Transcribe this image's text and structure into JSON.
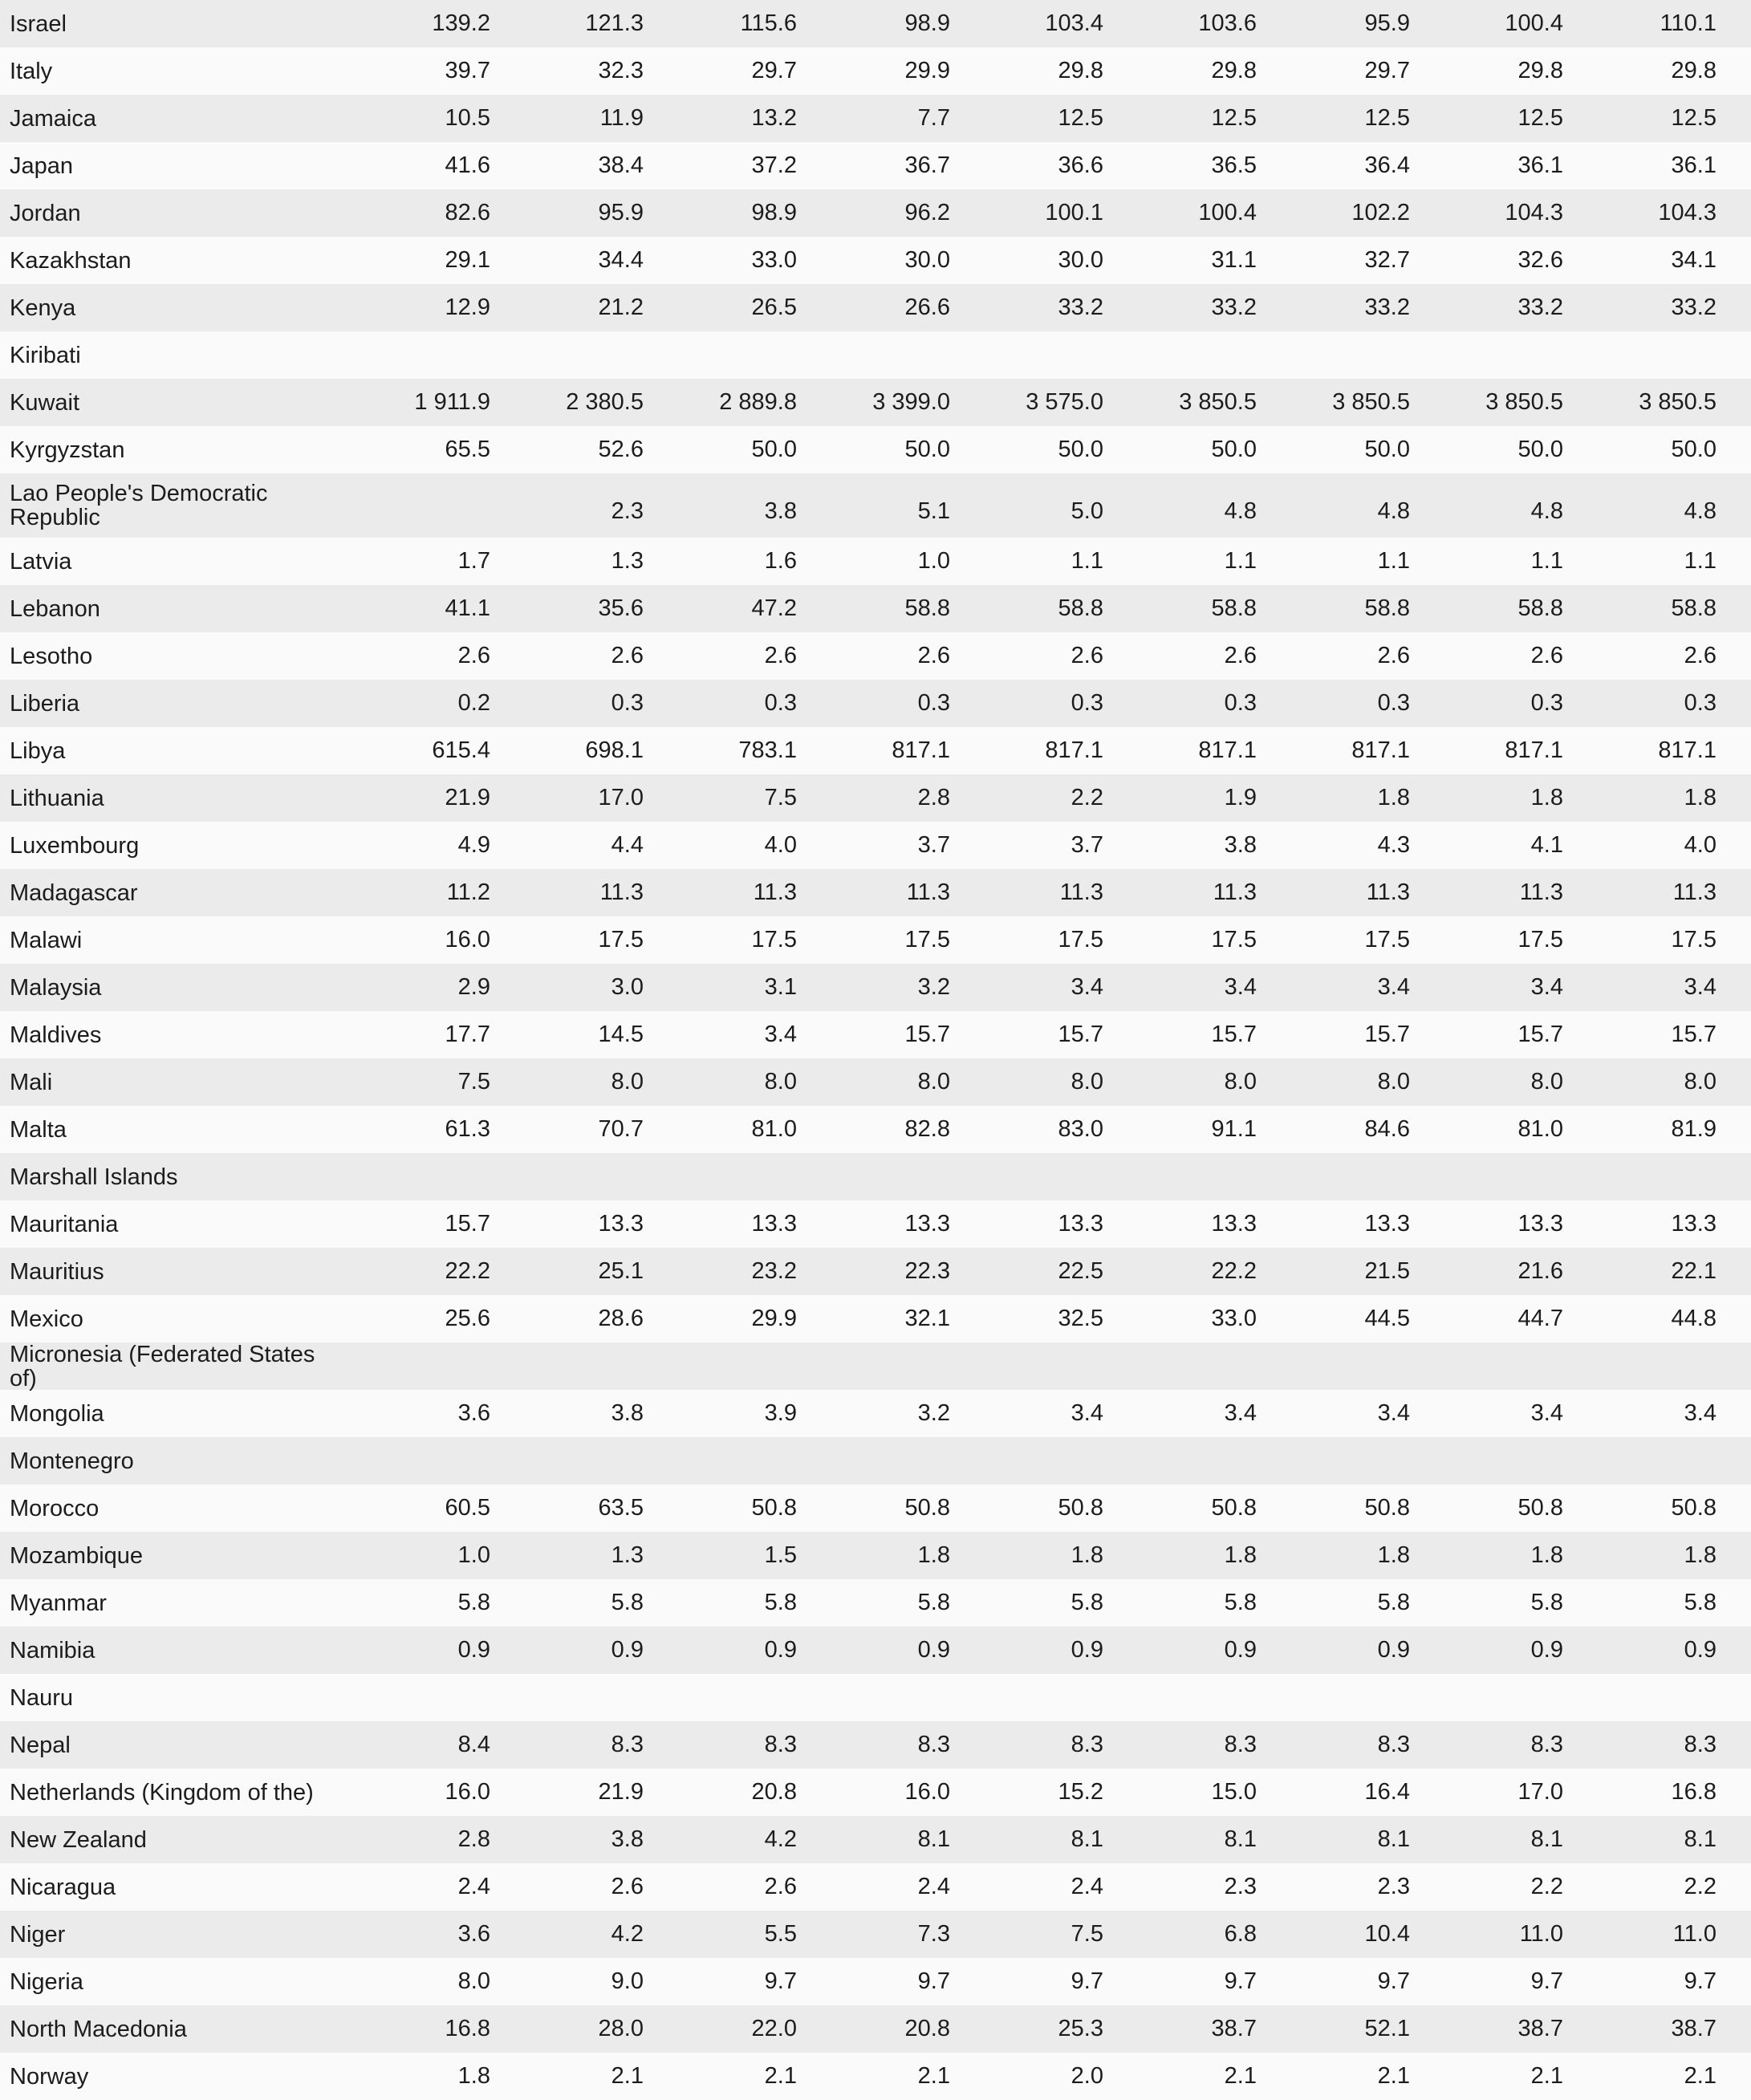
{
  "table": {
    "rows": [
      {
        "name": "Israel",
        "values": [
          "139.2",
          "121.3",
          "115.6",
          "98.9",
          "103.4",
          "103.6",
          "95.9",
          "100.4",
          "110.1"
        ]
      },
      {
        "name": "Italy",
        "values": [
          "39.7",
          "32.3",
          "29.7",
          "29.9",
          "29.8",
          "29.8",
          "29.7",
          "29.8",
          "29.8"
        ]
      },
      {
        "name": "Jamaica",
        "values": [
          "10.5",
          "11.9",
          "13.2",
          "7.7",
          "12.5",
          "12.5",
          "12.5",
          "12.5",
          "12.5"
        ]
      },
      {
        "name": "Japan",
        "values": [
          "41.6",
          "38.4",
          "37.2",
          "36.7",
          "36.6",
          "36.5",
          "36.4",
          "36.1",
          "36.1"
        ]
      },
      {
        "name": "Jordan",
        "values": [
          "82.6",
          "95.9",
          "98.9",
          "96.2",
          "100.1",
          "100.4",
          "102.2",
          "104.3",
          "104.3"
        ]
      },
      {
        "name": "Kazakhstan",
        "values": [
          "29.1",
          "34.4",
          "33.0",
          "30.0",
          "30.0",
          "31.1",
          "32.7",
          "32.6",
          "34.1"
        ]
      },
      {
        "name": "Kenya",
        "values": [
          "12.9",
          "21.2",
          "26.5",
          "26.6",
          "33.2",
          "33.2",
          "33.2",
          "33.2",
          "33.2"
        ]
      },
      {
        "name": "Kiribati",
        "values": []
      },
      {
        "name": "Kuwait",
        "values": [
          "1 911.9",
          "2 380.5",
          "2 889.8",
          "3 399.0",
          "3 575.0",
          "3 850.5",
          "3 850.5",
          "3 850.5",
          "3 850.5"
        ]
      },
      {
        "name": "Kyrgyzstan",
        "values": [
          "65.5",
          "52.6",
          "50.0",
          "50.0",
          "50.0",
          "50.0",
          "50.0",
          "50.0",
          "50.0"
        ]
      },
      {
        "name": "Lao People's Democratic Republic",
        "values": [
          "",
          "2.3",
          "3.8",
          "5.1",
          "5.0",
          "4.8",
          "4.8",
          "4.8",
          "4.8"
        ]
      },
      {
        "name": "Latvia",
        "values": [
          "1.7",
          "1.3",
          "1.6",
          "1.0",
          "1.1",
          "1.1",
          "1.1",
          "1.1",
          "1.1"
        ]
      },
      {
        "name": "Lebanon",
        "values": [
          "41.1",
          "35.6",
          "47.2",
          "58.8",
          "58.8",
          "58.8",
          "58.8",
          "58.8",
          "58.8"
        ]
      },
      {
        "name": "Lesotho",
        "values": [
          "2.6",
          "2.6",
          "2.6",
          "2.6",
          "2.6",
          "2.6",
          "2.6",
          "2.6",
          "2.6"
        ]
      },
      {
        "name": "Liberia",
        "values": [
          "0.2",
          "0.3",
          "0.3",
          "0.3",
          "0.3",
          "0.3",
          "0.3",
          "0.3",
          "0.3"
        ]
      },
      {
        "name": "Libya",
        "values": [
          "615.4",
          "698.1",
          "783.1",
          "817.1",
          "817.1",
          "817.1",
          "817.1",
          "817.1",
          "817.1"
        ]
      },
      {
        "name": "Lithuania",
        "values": [
          "21.9",
          "17.0",
          "7.5",
          "2.8",
          "2.2",
          "1.9",
          "1.8",
          "1.8",
          "1.8"
        ]
      },
      {
        "name": "Luxembourg",
        "values": [
          "4.9",
          "4.4",
          "4.0",
          "3.7",
          "3.7",
          "3.8",
          "4.3",
          "4.1",
          "4.0"
        ]
      },
      {
        "name": "Madagascar",
        "values": [
          "11.2",
          "11.3",
          "11.3",
          "11.3",
          "11.3",
          "11.3",
          "11.3",
          "11.3",
          "11.3"
        ]
      },
      {
        "name": "Malawi",
        "values": [
          "16.0",
          "17.5",
          "17.5",
          "17.5",
          "17.5",
          "17.5",
          "17.5",
          "17.5",
          "17.5"
        ]
      },
      {
        "name": "Malaysia",
        "values": [
          "2.9",
          "3.0",
          "3.1",
          "3.2",
          "3.4",
          "3.4",
          "3.4",
          "3.4",
          "3.4"
        ]
      },
      {
        "name": "Maldives",
        "values": [
          "17.7",
          "14.5",
          "3.4",
          "15.7",
          "15.7",
          "15.7",
          "15.7",
          "15.7",
          "15.7"
        ]
      },
      {
        "name": "Mali",
        "values": [
          "7.5",
          "8.0",
          "8.0",
          "8.0",
          "8.0",
          "8.0",
          "8.0",
          "8.0",
          "8.0"
        ]
      },
      {
        "name": "Malta",
        "values": [
          "61.3",
          "70.7",
          "81.0",
          "82.8",
          "83.0",
          "91.1",
          "84.6",
          "81.0",
          "81.9"
        ]
      },
      {
        "name": "Marshall Islands",
        "values": []
      },
      {
        "name": "Mauritania",
        "values": [
          "15.7",
          "13.3",
          "13.3",
          "13.3",
          "13.3",
          "13.3",
          "13.3",
          "13.3",
          "13.3"
        ]
      },
      {
        "name": "Mauritius",
        "values": [
          "22.2",
          "25.1",
          "23.2",
          "22.3",
          "22.5",
          "22.2",
          "21.5",
          "21.6",
          "22.1"
        ]
      },
      {
        "name": "Mexico",
        "values": [
          "25.6",
          "28.6",
          "29.9",
          "32.1",
          "32.5",
          "33.0",
          "44.5",
          "44.7",
          "44.8"
        ]
      },
      {
        "name": "Micronesia (Federated States of)",
        "values": []
      },
      {
        "name": "Mongolia",
        "values": [
          "3.6",
          "3.8",
          "3.9",
          "3.2",
          "3.4",
          "3.4",
          "3.4",
          "3.4",
          "3.4"
        ]
      },
      {
        "name": "Montenegro",
        "values": []
      },
      {
        "name": "Morocco",
        "values": [
          "60.5",
          "63.5",
          "50.8",
          "50.8",
          "50.8",
          "50.8",
          "50.8",
          "50.8",
          "50.8"
        ]
      },
      {
        "name": "Mozambique",
        "values": [
          "1.0",
          "1.3",
          "1.5",
          "1.8",
          "1.8",
          "1.8",
          "1.8",
          "1.8",
          "1.8"
        ]
      },
      {
        "name": "Myanmar",
        "values": [
          "5.8",
          "5.8",
          "5.8",
          "5.8",
          "5.8",
          "5.8",
          "5.8",
          "5.8",
          "5.8"
        ]
      },
      {
        "name": "Namibia",
        "values": [
          "0.9",
          "0.9",
          "0.9",
          "0.9",
          "0.9",
          "0.9",
          "0.9",
          "0.9",
          "0.9"
        ]
      },
      {
        "name": "Nauru",
        "values": []
      },
      {
        "name": "Nepal",
        "values": [
          "8.4",
          "8.3",
          "8.3",
          "8.3",
          "8.3",
          "8.3",
          "8.3",
          "8.3",
          "8.3"
        ]
      },
      {
        "name": "Netherlands (Kingdom of the)",
        "values": [
          "16.0",
          "21.9",
          "20.8",
          "16.0",
          "15.2",
          "15.0",
          "16.4",
          "17.0",
          "16.8"
        ]
      },
      {
        "name": "New Zealand",
        "values": [
          "2.8",
          "3.8",
          "4.2",
          "8.1",
          "8.1",
          "8.1",
          "8.1",
          "8.1",
          "8.1"
        ]
      },
      {
        "name": "Nicaragua",
        "values": [
          "2.4",
          "2.6",
          "2.6",
          "2.4",
          "2.4",
          "2.3",
          "2.3",
          "2.2",
          "2.2"
        ]
      },
      {
        "name": "Niger",
        "values": [
          "3.6",
          "4.2",
          "5.5",
          "7.3",
          "7.5",
          "6.8",
          "10.4",
          "11.0",
          "11.0"
        ]
      },
      {
        "name": "Nigeria",
        "values": [
          "8.0",
          "9.0",
          "9.7",
          "9.7",
          "9.7",
          "9.7",
          "9.7",
          "9.7",
          "9.7"
        ]
      },
      {
        "name": "North Macedonia",
        "values": [
          "16.8",
          "28.0",
          "22.0",
          "20.8",
          "25.3",
          "38.7",
          "52.1",
          "38.7",
          "38.7"
        ]
      },
      {
        "name": "Norway",
        "values": [
          "1.8",
          "2.1",
          "2.1",
          "2.1",
          "2.0",
          "2.1",
          "2.1",
          "2.1",
          "2.1"
        ]
      }
    ]
  }
}
